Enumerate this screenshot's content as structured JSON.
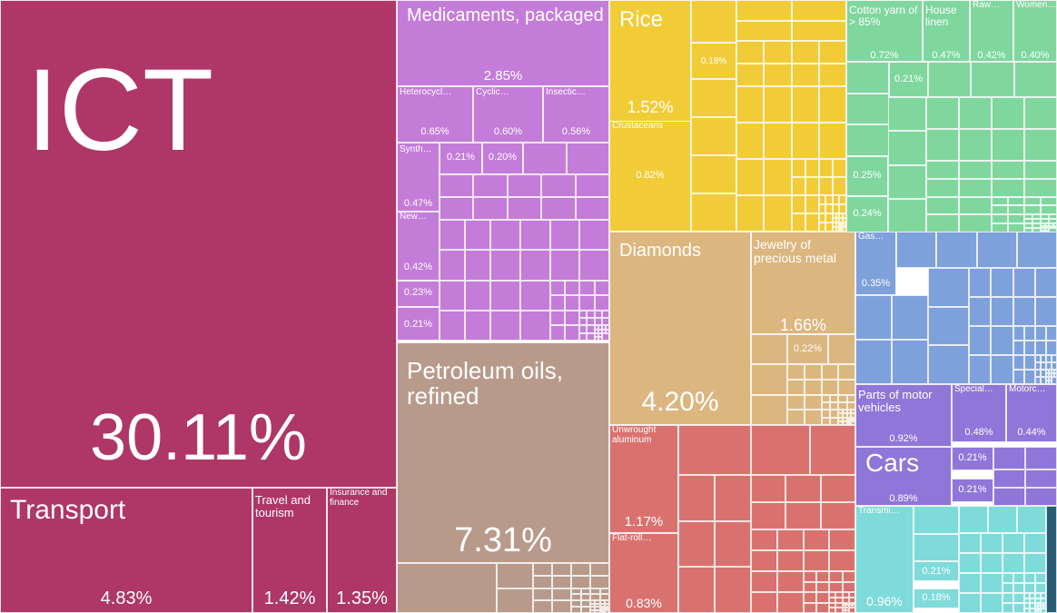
{
  "chart_data": {
    "type": "treemap",
    "title": "",
    "colors": {
      "services": "#ae3767",
      "chemicals": "#c47cd9",
      "mineral": "#b89a8b",
      "vegetable": "#f2cc37",
      "precious": "#dcb67f",
      "metals": "#d9726f",
      "textiles": "#7fd79e",
      "machines": "#7ea1db",
      "transport": "#9076d8",
      "instruments": "#7fdada",
      "other": "#2a5d73"
    },
    "tiles": [
      {
        "label": "ICT",
        "value": "30.11%",
        "category": "services"
      },
      {
        "label": "Transport",
        "value": "4.83%",
        "category": "services"
      },
      {
        "label": "Travel and tourism",
        "value": "1.42%",
        "category": "services"
      },
      {
        "label": "Insurance and finance",
        "value": "1.35%",
        "category": "services"
      },
      {
        "label": "Medicaments, packaged",
        "value": "2.85%",
        "category": "chemicals"
      },
      {
        "label": "Heterocycl…",
        "value": "0.65%",
        "category": "chemicals"
      },
      {
        "label": "Cyclic…",
        "value": "0.60%",
        "category": "chemicals"
      },
      {
        "label": "Insectic…",
        "value": "0.56%",
        "category": "chemicals"
      },
      {
        "label": "Synth…",
        "value": "0.47%",
        "category": "chemicals"
      },
      {
        "label": "",
        "value": "0.21%",
        "category": "chemicals"
      },
      {
        "label": "",
        "value": "0.20%",
        "category": "chemicals"
      },
      {
        "label": "New…",
        "value": "0.42%",
        "category": "chemicals"
      },
      {
        "label": "",
        "value": "0.23%",
        "category": "chemicals"
      },
      {
        "label": "",
        "value": "0.21%",
        "category": "chemicals"
      },
      {
        "label": "Petroleum oils, refined",
        "value": "7.31%",
        "category": "mineral"
      },
      {
        "label": "Rice",
        "value": "1.52%",
        "category": "vegetable"
      },
      {
        "label": "",
        "value": "0.18%",
        "category": "vegetable"
      },
      {
        "label": "Crustaceans",
        "value": "0.82%",
        "category": "vegetable"
      },
      {
        "label": "Cotton yarn of > 85%",
        "value": "0.72%",
        "category": "textiles"
      },
      {
        "label": "House linen",
        "value": "0.47%",
        "category": "textiles"
      },
      {
        "label": "Raw…",
        "value": "0.42%",
        "category": "textiles"
      },
      {
        "label": "Women…",
        "value": "0.40%",
        "category": "textiles"
      },
      {
        "label": "",
        "value": "0.21%",
        "category": "textiles"
      },
      {
        "label": "",
        "value": "0.25%",
        "category": "textiles"
      },
      {
        "label": "",
        "value": "0.24%",
        "category": "textiles"
      },
      {
        "label": "Diamonds",
        "value": "4.20%",
        "category": "precious"
      },
      {
        "label": "Jewelry of precious metal",
        "value": "1.66%",
        "category": "precious"
      },
      {
        "label": "",
        "value": "0.22%",
        "category": "precious"
      },
      {
        "label": "Gas…",
        "value": "0.35%",
        "category": "machines"
      },
      {
        "label": "Unwrought aluminum",
        "value": "1.17%",
        "category": "metals"
      },
      {
        "label": "Flat-roll…",
        "value": "0.83%",
        "category": "metals"
      },
      {
        "label": "Parts of motor vehicles",
        "value": "0.92%",
        "category": "transport"
      },
      {
        "label": "Special…",
        "value": "0.48%",
        "category": "transport"
      },
      {
        "label": "Motorc…",
        "value": "0.44%",
        "category": "transport"
      },
      {
        "label": "Cars",
        "value": "0.89%",
        "category": "transport"
      },
      {
        "label": "",
        "value": "0.21%",
        "category": "transport"
      },
      {
        "label": "",
        "value": "0.21%",
        "category": "transport"
      },
      {
        "label": "Transmi…",
        "value": "0.96%",
        "category": "instruments"
      },
      {
        "label": "",
        "value": "0.21%",
        "category": "instruments"
      },
      {
        "label": "",
        "value": "0.18%",
        "category": "instruments"
      }
    ]
  }
}
